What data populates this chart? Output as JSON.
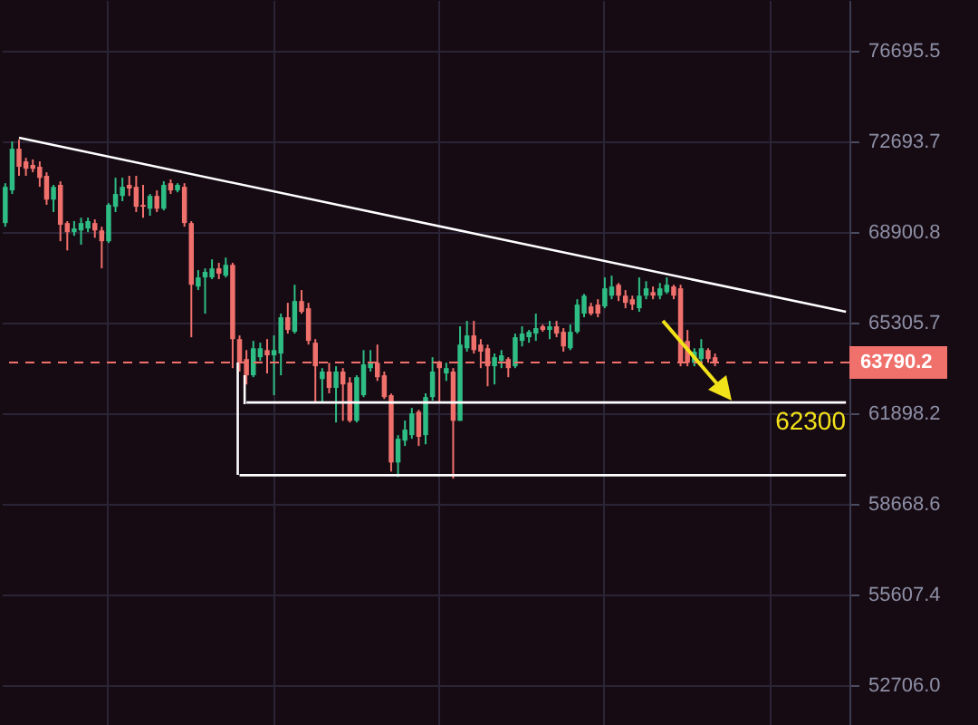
{
  "chart_data": {
    "type": "candlestick",
    "categories": [
      null,
      null,
      null,
      null,
      null,
      null,
      null,
      null,
      null,
      null,
      null,
      null,
      null,
      null,
      null,
      null,
      null,
      null,
      null,
      null,
      null,
      null,
      null,
      null,
      null,
      null,
      null,
      null,
      null,
      null,
      null,
      null,
      null,
      null,
      null,
      null,
      null,
      null,
      null,
      null,
      null,
      null,
      null,
      null,
      null,
      null,
      null,
      null,
      null,
      null,
      null,
      null,
      null,
      null,
      null,
      null,
      null,
      null,
      null,
      null,
      null,
      null,
      null,
      null,
      null,
      null,
      null,
      null,
      null,
      null,
      null,
      null,
      null,
      null,
      null,
      null,
      null,
      null,
      null,
      null,
      null,
      null,
      null,
      null,
      null,
      null,
      null,
      null,
      null,
      null,
      null,
      null,
      null,
      null,
      null,
      null,
      null,
      null,
      null,
      null,
      null,
      null,
      null,
      null,
      null,
      null,
      null,
      null,
      null,
      null,
      null,
      null,
      null,
      null,
      null,
      null,
      null,
      null,
      null,
      null,
      null,
      null,
      null
    ],
    "ohlc": [
      [
        69270,
        70920,
        69120,
        70770
      ],
      [
        70620,
        72690,
        70470,
        72380
      ],
      [
        72380,
        72770,
        71230,
        71610
      ],
      [
        71840,
        71990,
        71230,
        71530
      ],
      [
        71690,
        71920,
        71380,
        71530
      ],
      [
        71610,
        71840,
        70770,
        71150
      ],
      [
        71230,
        71380,
        70020,
        70240
      ],
      [
        70240,
        70850,
        69720,
        70770
      ],
      [
        70850,
        71000,
        68530,
        69200
      ],
      [
        69270,
        69350,
        68160,
        68900
      ],
      [
        68900,
        69350,
        68750,
        69050
      ],
      [
        68970,
        69490,
        68390,
        69270
      ],
      [
        69050,
        69490,
        68900,
        69350
      ],
      [
        69270,
        69420,
        68670,
        68970
      ],
      [
        68970,
        69120,
        67440,
        68530
      ],
      [
        68530,
        70090,
        68460,
        70020
      ],
      [
        69940,
        71150,
        69720,
        70470
      ],
      [
        70390,
        71150,
        70170,
        70770
      ],
      [
        70850,
        71230,
        70390,
        70700
      ],
      [
        70770,
        71230,
        69720,
        69940
      ],
      [
        70020,
        70850,
        69490,
        69940
      ],
      [
        69860,
        70470,
        69570,
        70390
      ],
      [
        70390,
        70620,
        69720,
        69860
      ],
      [
        69860,
        71000,
        69790,
        70850
      ],
      [
        70920,
        71080,
        70470,
        70620
      ],
      [
        70620,
        70920,
        70540,
        70850
      ],
      [
        70770,
        70920,
        69120,
        69270
      ],
      [
        69270,
        69350,
        64750,
        66790
      ],
      [
        66720,
        67370,
        66580,
        67080
      ],
      [
        67080,
        67440,
        65660,
        67300
      ],
      [
        67080,
        67800,
        67010,
        67440
      ],
      [
        67440,
        67660,
        67010,
        67230
      ],
      [
        67150,
        67870,
        67080,
        67580
      ],
      [
        67580,
        67660,
        63580,
        64680
      ],
      [
        64680,
        64820,
        63450,
        63780
      ],
      [
        63920,
        64260,
        62970,
        63310
      ],
      [
        63310,
        64610,
        63240,
        64330
      ],
      [
        63990,
        64540,
        63850,
        64330
      ],
      [
        64260,
        64680,
        63380,
        64060
      ],
      [
        64060,
        64820,
        62570,
        64260
      ],
      [
        64130,
        65660,
        63310,
        65520
      ],
      [
        65520,
        66080,
        64890,
        65030
      ],
      [
        64960,
        66790,
        64890,
        66150
      ],
      [
        66150,
        66580,
        65660,
        65730
      ],
      [
        65870,
        66080,
        64470,
        64610
      ],
      [
        64540,
        64680,
        62300,
        63650
      ],
      [
        63170,
        63580,
        62300,
        63450
      ],
      [
        63450,
        63780,
        62640,
        62840
      ],
      [
        62840,
        63650,
        61570,
        63450
      ],
      [
        63450,
        63580,
        61630,
        62970
      ],
      [
        63040,
        63240,
        61570,
        61630
      ],
      [
        61630,
        63310,
        61570,
        63240
      ],
      [
        62570,
        64260,
        62500,
        63720
      ],
      [
        63580,
        64260,
        63450,
        63780
      ],
      [
        63780,
        64470,
        63100,
        63240
      ],
      [
        63310,
        63450,
        62430,
        62500
      ],
      [
        62570,
        62630,
        59810,
        60130
      ],
      [
        60130,
        61110,
        59620,
        60980
      ],
      [
        60910,
        61640,
        60720,
        61310
      ],
      [
        61110,
        62100,
        60980,
        61900
      ],
      [
        61960,
        62030,
        60720,
        61050
      ],
      [
        61110,
        62640,
        60780,
        62500
      ],
      [
        62500,
        63990,
        62370,
        63450
      ],
      [
        63780,
        63850,
        62300,
        63580
      ],
      [
        63380,
        63780,
        63100,
        63580
      ],
      [
        63450,
        63580,
        59560,
        61630
      ],
      [
        61630,
        65170,
        61630,
        64470
      ],
      [
        64330,
        65380,
        64200,
        64820
      ],
      [
        64820,
        65380,
        64130,
        64260
      ],
      [
        64470,
        64680,
        63580,
        64200
      ],
      [
        64330,
        64470,
        62900,
        63650
      ],
      [
        63650,
        64130,
        62970,
        63990
      ],
      [
        63850,
        64260,
        63580,
        64060
      ],
      [
        63920,
        63990,
        63240,
        63580
      ],
      [
        63650,
        64890,
        63580,
        64750
      ],
      [
        64610,
        65170,
        64400,
        64890
      ],
      [
        64750,
        65030,
        64540,
        64960
      ],
      [
        64890,
        65660,
        64610,
        65100
      ],
      [
        65170,
        65240,
        64960,
        65030
      ],
      [
        65030,
        65380,
        64680,
        65170
      ],
      [
        65170,
        65380,
        64750,
        64890
      ],
      [
        64960,
        65100,
        64200,
        64400
      ],
      [
        64330,
        65240,
        64260,
        64960
      ],
      [
        64960,
        66220,
        64890,
        66010
      ],
      [
        65660,
        66430,
        65520,
        66360
      ],
      [
        65940,
        66080,
        65590,
        65660
      ],
      [
        66010,
        66220,
        65520,
        65660
      ],
      [
        65940,
        67080,
        65870,
        66650
      ],
      [
        66360,
        67150,
        66220,
        66720
      ],
      [
        66790,
        66860,
        66150,
        66360
      ],
      [
        66360,
        66580,
        65870,
        66080
      ],
      [
        66220,
        66360,
        65800,
        66010
      ],
      [
        65870,
        67080,
        65730,
        66360
      ],
      [
        66360,
        66930,
        66220,
        66650
      ],
      [
        66500,
        66720,
        66220,
        66360
      ],
      [
        66360,
        66860,
        66220,
        66650
      ],
      [
        66500,
        67080,
        66430,
        66790
      ],
      [
        66720,
        66790,
        66220,
        66360
      ],
      [
        66650,
        66790,
        63650,
        63780
      ],
      [
        64610,
        65030,
        63650,
        63780
      ],
      [
        63780,
        64330,
        63650,
        64200
      ],
      [
        63920,
        64680,
        63650,
        64330
      ],
      [
        64260,
        64330,
        63780,
        63920
      ],
      [
        63990,
        64130,
        63650,
        63790
      ],
      null,
      null,
      null,
      null,
      null,
      null,
      null,
      null,
      null,
      null,
      null,
      null,
      null,
      null,
      null,
      null,
      null,
      null,
      null
    ],
    "colors": [
      "#2ebd85",
      "#2ebd85",
      "#f0706c",
      "#f0706c",
      "#f0706c",
      "#f0706c",
      "#f0706c",
      "#2ebd85",
      "#f0706c",
      "#f0706c",
      "#2ebd85",
      "#2ebd85",
      "#2ebd85",
      "#f0706c",
      "#f0706c",
      "#2ebd85",
      "#2ebd85",
      "#2ebd85",
      "#f0706c",
      "#f0706c",
      "#f0706c",
      "#2ebd85",
      "#f0706c",
      "#2ebd85",
      "#f0706c",
      "#2ebd85",
      "#f0706c",
      "#f0706c",
      "#2ebd85",
      "#2ebd85",
      "#2ebd85",
      "#f0706c",
      "#2ebd85",
      "#f0706c",
      "#f0706c",
      "#f0706c",
      "#2ebd85",
      "#2ebd85",
      "#f0706c",
      "#2ebd85",
      "#2ebd85",
      "#f0706c",
      "#2ebd85",
      "#f0706c",
      "#f0706c",
      "#f0706c",
      "#2ebd85",
      "#f0706c",
      "#2ebd85",
      "#f0706c",
      "#f0706c",
      "#2ebd85",
      "#2ebd85",
      "#2ebd85",
      "#f0706c",
      "#f0706c",
      "#f0706c",
      "#2ebd85",
      "#2ebd85",
      "#2ebd85",
      "#f0706c",
      "#2ebd85",
      "#2ebd85",
      "#f0706c",
      "#2ebd85",
      "#f0706c",
      "#2ebd85",
      "#2ebd85",
      "#f0706c",
      "#f0706c",
      "#f0706c",
      "#2ebd85",
      "#2ebd85",
      "#f0706c",
      "#2ebd85",
      "#2ebd85",
      "#2ebd85",
      "#2ebd85",
      "#f0706c",
      "#2ebd85",
      "#f0706c",
      "#f0706c",
      "#2ebd85",
      "#2ebd85",
      "#2ebd85",
      "#f0706c",
      "#f0706c",
      "#2ebd85",
      "#2ebd85",
      "#f0706c",
      "#f0706c",
      "#f0706c",
      "#2ebd85",
      "#2ebd85",
      "#f0706c",
      "#2ebd85",
      "#2ebd85",
      "#f0706c",
      "#f0706c",
      "#f0706c",
      "#2ebd85",
      "#2ebd85",
      "#f0706c",
      "#f0706c",
      null,
      null,
      null,
      null,
      null,
      null,
      null,
      null,
      null,
      null,
      null,
      null,
      null,
      null,
      null,
      null,
      null,
      null,
      null
    ],
    "series": [
      {
        "type": "line",
        "color": "#ffffff",
        "values": [
          null,
          null,
          72850,
          null,
          null,
          null,
          null,
          null,
          null,
          null,
          null,
          null,
          null,
          null,
          null,
          null,
          null,
          null,
          null,
          null,
          null,
          null,
          null,
          null,
          null,
          null,
          null,
          null,
          null,
          null,
          null,
          null,
          null,
          null,
          null,
          null,
          null,
          null,
          null,
          null,
          null,
          null,
          null,
          null,
          null,
          null,
          null,
          null,
          null,
          null,
          null,
          null,
          null,
          null,
          null,
          null,
          null,
          null,
          null,
          null,
          null,
          null,
          null,
          null,
          null,
          null,
          null,
          null,
          null,
          null,
          null,
          null,
          null,
          null,
          null,
          null,
          null,
          null,
          null,
          null,
          null,
          null,
          null,
          null,
          null,
          null,
          null,
          null,
          null,
          null,
          null,
          null,
          null,
          null,
          null,
          null,
          null,
          null,
          null,
          null,
          null,
          null,
          null,
          null,
          null,
          null,
          null,
          null,
          null,
          null,
          null,
          null,
          null,
          null,
          null,
          null,
          null,
          null,
          null,
          null,
          null,
          null,
          65730
        ]
      },
      {
        "type": "line",
        "color": "#ffffff",
        "values": [
          null,
          null,
          null,
          null,
          null,
          null,
          null,
          null,
          null,
          null,
          null,
          null,
          null,
          null,
          null,
          null,
          null,
          null,
          null,
          null,
          null,
          null,
          null,
          null,
          null,
          null,
          null,
          null,
          null,
          null,
          null,
          null,
          null,
          null,
          null,
          62300,
          null,
          null,
          null,
          null,
          null,
          null,
          null,
          null,
          null,
          null,
          null,
          null,
          null,
          null,
          null,
          null,
          null,
          null,
          null,
          null,
          null,
          null,
          null,
          null,
          null,
          null,
          null,
          null,
          null,
          null,
          null,
          null,
          null,
          null,
          null,
          null,
          null,
          null,
          null,
          null,
          null,
          null,
          null,
          null,
          null,
          null,
          null,
          null,
          null,
          null,
          null,
          null,
          null,
          null,
          null,
          null,
          null,
          null,
          null,
          null,
          null,
          null,
          null,
          null,
          null,
          null,
          null,
          null,
          null,
          null,
          null,
          null,
          null,
          null,
          null,
          null,
          null,
          null,
          null,
          null,
          null,
          null,
          null,
          null,
          null,
          null,
          62300
        ]
      },
      {
        "type": "line",
        "color": "#ffffff",
        "values": [
          null,
          null,
          null,
          null,
          null,
          null,
          null,
          null,
          null,
          null,
          null,
          null,
          null,
          null,
          null,
          null,
          null,
          null,
          null,
          null,
          null,
          null,
          null,
          null,
          null,
          null,
          null,
          null,
          null,
          null,
          null,
          null,
          null,
          null,
          59680,
          null,
          null,
          null,
          null,
          null,
          null,
          null,
          null,
          null,
          null,
          null,
          null,
          null,
          null,
          null,
          null,
          null,
          null,
          null,
          null,
          null,
          null,
          null,
          null,
          null,
          null,
          null,
          null,
          null,
          null,
          null,
          null,
          null,
          null,
          null,
          null,
          null,
          null,
          null,
          null,
          null,
          null,
          null,
          null,
          null,
          null,
          null,
          null,
          null,
          null,
          null,
          null,
          null,
          null,
          null,
          null,
          null,
          null,
          null,
          null,
          null,
          null,
          null,
          null,
          null,
          null,
          null,
          null,
          null,
          null,
          null,
          null,
          null,
          null,
          null,
          null,
          null,
          null,
          null,
          null,
          null,
          null,
          null,
          null,
          null,
          null,
          null,
          59680
        ]
      }
    ],
    "ref_lines": [
      {
        "axis": "y",
        "value": 63790.2,
        "label": "63790.2",
        "color": "#f0706c",
        "line_style": "dashed"
      }
    ],
    "annotations": [
      "62300"
    ],
    "log": "y",
    "ylim": [
      51490,
      79030
    ],
    "yticks": [
      76695.5,
      72693.7,
      68900.8,
      65305.7,
      61898.2,
      58668.6,
      55607.4,
      {
        "value": 52706,
        "label": "52706.0"
      }
    ],
    "grid": true,
    "tick_labels": "y"
  }
}
